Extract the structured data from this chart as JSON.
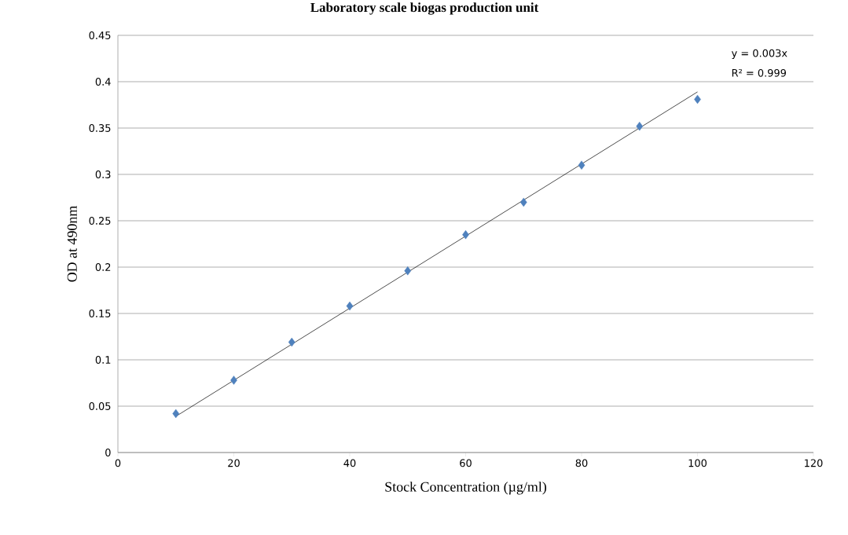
{
  "chart_data": {
    "type": "scatter",
    "title": "Laboratory scale biogas production unit",
    "xlabel": "Stock Concentration (µg/ml)",
    "ylabel": "OD at 490nm",
    "series": [
      {
        "color": "#4f81bd",
        "marker": "diamond",
        "x": [
          10,
          20,
          30,
          40,
          50,
          60,
          70,
          80,
          90,
          100
        ],
        "values": [
          0.042,
          0.078,
          0.119,
          0.158,
          0.196,
          0.235,
          0.27,
          0.31,
          0.352,
          0.381
        ]
      },
      {
        "type": "line",
        "color": "#000000",
        "marker": "none",
        "line_style": "solid",
        "x": [
          10,
          100
        ],
        "values": [
          0.039,
          0.389
        ]
      }
    ],
    "annotations": [
      "y = 0.003x",
      "R² = 0.999"
    ],
    "xlim": [
      0,
      120
    ],
    "xticks": [
      0,
      20,
      40,
      60,
      80,
      100,
      120
    ],
    "ylim": [
      0,
      0.45
    ],
    "yticks": [
      0,
      0.05,
      0.1,
      0.15,
      0.2,
      0.25,
      0.3,
      0.35,
      0.4,
      0.45
    ],
    "grid": "y"
  }
}
